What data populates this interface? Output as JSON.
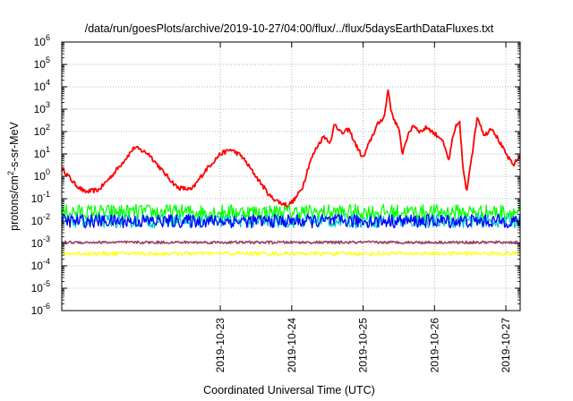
{
  "chart_data": {
    "type": "line",
    "title": "/data/run/goesPlots/archive/2019-10-27/04:00/flux/../flux/5daysEarthDataFluxes.txt",
    "xlabel": "Coordinated Universal Time (UTC)",
    "ylabel_parts": [
      "protons/cm",
      "2",
      "-s-sr-MeV"
    ],
    "yscale": "log",
    "ylim_exp": [
      -6,
      6
    ],
    "y_ticks": [
      {
        "base": "10",
        "exp": "-6",
        "e": -6
      },
      {
        "base": "10",
        "exp": "-5",
        "e": -5
      },
      {
        "base": "10",
        "exp": "-4",
        "e": -4
      },
      {
        "base": "10",
        "exp": "-3",
        "e": -3
      },
      {
        "base": "10",
        "exp": "-2",
        "e": -2
      },
      {
        "base": "10",
        "exp": "-1",
        "e": -1
      },
      {
        "base": "10",
        "exp": "0",
        "e": 0
      },
      {
        "base": "10",
        "exp": "1",
        "e": 1
      },
      {
        "base": "10",
        "exp": "2",
        "e": 2
      },
      {
        "base": "10",
        "exp": "3",
        "e": 3
      },
      {
        "base": "10",
        "exp": "4",
        "e": 4
      },
      {
        "base": "10",
        "exp": "5",
        "e": 5
      },
      {
        "base": "10",
        "exp": "6",
        "e": 6
      }
    ],
    "xlim_days": [
      -2.22,
      4.2
    ],
    "x_ticks": [
      {
        "label": "2019-10-23",
        "d": 0
      },
      {
        "label": "2019-10-24",
        "d": 1
      },
      {
        "label": "2019-10-25",
        "d": 2
      },
      {
        "label": "2019-10-26",
        "d": 3
      },
      {
        "label": "2019-10-27",
        "d": 4
      }
    ],
    "grid": true,
    "series": [
      {
        "color": "#ff0000",
        "width": 1.8,
        "noise": 0.1,
        "points": [
          [
            -2.2,
            0.3
          ],
          [
            -2.05,
            -0.3
          ],
          [
            -1.9,
            -0.7
          ],
          [
            -1.7,
            -0.6
          ],
          [
            -1.5,
            0.1
          ],
          [
            -1.3,
            0.9
          ],
          [
            -1.2,
            1.3
          ],
          [
            -1.0,
            1.0
          ],
          [
            -0.8,
            0.2
          ],
          [
            -0.6,
            -0.5
          ],
          [
            -0.4,
            -0.6
          ],
          [
            -0.2,
            0.3
          ],
          [
            0.0,
            1.0
          ],
          [
            0.15,
            1.2
          ],
          [
            0.3,
            0.9
          ],
          [
            0.5,
            0.0
          ],
          [
            0.7,
            -0.9
          ],
          [
            0.85,
            -1.2
          ],
          [
            0.95,
            -1.3
          ],
          [
            1.05,
            -1.0
          ],
          [
            1.15,
            -0.5
          ],
          [
            1.25,
            0.6
          ],
          [
            1.35,
            1.3
          ],
          [
            1.45,
            1.8
          ],
          [
            1.55,
            1.5
          ],
          [
            1.6,
            2.4
          ],
          [
            1.7,
            1.9
          ],
          [
            1.8,
            2.1
          ],
          [
            1.9,
            1.4
          ],
          [
            2.0,
            0.8
          ],
          [
            2.1,
            1.6
          ],
          [
            2.2,
            2.3
          ],
          [
            2.3,
            2.7
          ],
          [
            2.35,
            3.9
          ],
          [
            2.4,
            2.8
          ],
          [
            2.5,
            2.1
          ],
          [
            2.55,
            1.0
          ],
          [
            2.6,
            1.6
          ],
          [
            2.7,
            2.3
          ],
          [
            2.8,
            2.0
          ],
          [
            2.9,
            2.2
          ],
          [
            3.0,
            1.9
          ],
          [
            3.1,
            1.7
          ],
          [
            3.15,
            1.2
          ],
          [
            3.2,
            0.7
          ],
          [
            3.25,
            1.6
          ],
          [
            3.3,
            2.2
          ],
          [
            3.35,
            2.5
          ],
          [
            3.4,
            0.3
          ],
          [
            3.45,
            -0.7
          ],
          [
            3.5,
            0.5
          ],
          [
            3.55,
            1.5
          ],
          [
            3.6,
            2.7
          ],
          [
            3.7,
            1.8
          ],
          [
            3.8,
            2.2
          ],
          [
            3.9,
            1.6
          ],
          [
            4.0,
            1.0
          ],
          [
            4.1,
            0.5
          ],
          [
            4.2,
            0.9
          ]
        ]
      },
      {
        "color": "#00ff00",
        "width": 1.2,
        "noise": 0.35,
        "points": [
          [
            -2.22,
            -1.6
          ],
          [
            4.2,
            -1.6
          ]
        ]
      },
      {
        "color": "#00c8c8",
        "width": 1.2,
        "noise": 0.3,
        "points": [
          [
            -2.22,
            -2.0
          ],
          [
            4.2,
            -2.0
          ]
        ]
      },
      {
        "color": "#0000ff",
        "width": 1.3,
        "noise": 0.3,
        "points": [
          [
            -2.22,
            -2.0
          ],
          [
            4.2,
            -2.0
          ]
        ]
      },
      {
        "color": "#ffff00",
        "width": 1.2,
        "noise": 0.09,
        "points": [
          [
            -2.22,
            -3.45
          ],
          [
            4.2,
            -3.45
          ]
        ]
      },
      {
        "color": "#994466",
        "width": 1.6,
        "noise": 0.06,
        "points": [
          [
            -2.22,
            -2.95
          ],
          [
            4.2,
            -2.95
          ]
        ]
      }
    ]
  }
}
